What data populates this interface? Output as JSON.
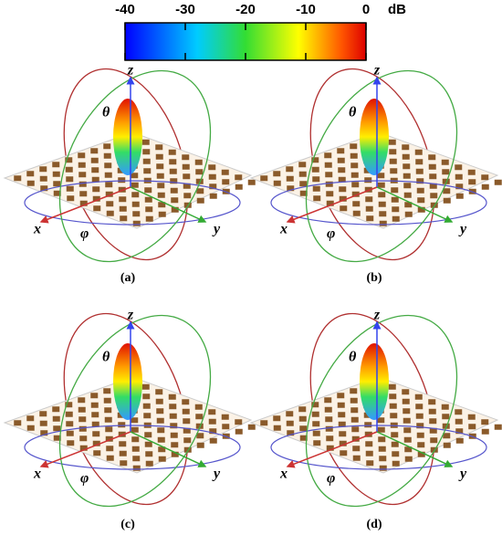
{
  "colorbar": {
    "lim": [
      -40,
      0
    ],
    "ticks": [
      -40,
      -30,
      -20,
      -10,
      0
    ],
    "unit": "dB"
  },
  "axis_labels": {
    "x": "x",
    "y": "y",
    "z": "z",
    "theta": "θ",
    "phi": "φ"
  },
  "panels": [
    {
      "label": "(a)"
    },
    {
      "label": "(b)"
    },
    {
      "label": "(c)"
    },
    {
      "label": "(d)"
    }
  ]
}
